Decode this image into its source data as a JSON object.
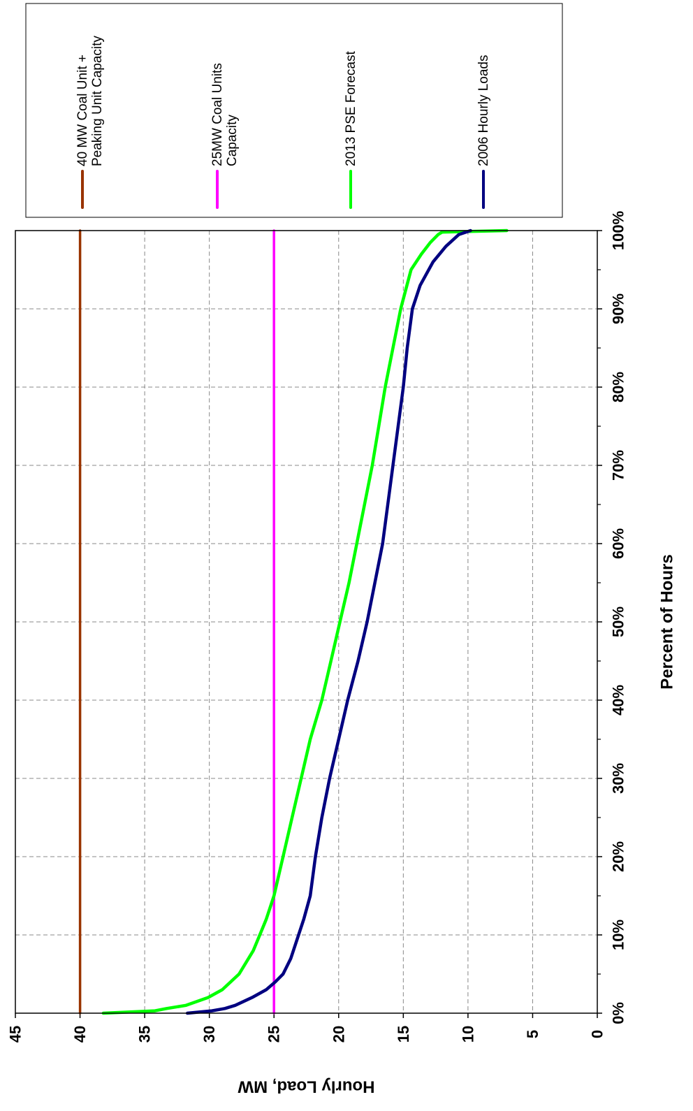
{
  "chart_data": {
    "type": "line",
    "xlabel": "Percent of Hours",
    "ylabel": "Hourly Load, MW",
    "xlim": [
      0,
      100
    ],
    "ylim": [
      0,
      45
    ],
    "x_ticks": [
      "0%",
      "10%",
      "20%",
      "30%",
      "40%",
      "50%",
      "60%",
      "70%",
      "80%",
      "90%",
      "100%"
    ],
    "y_ticks": [
      "0",
      "5",
      "10",
      "15",
      "20",
      "25",
      "30",
      "35",
      "40",
      "45"
    ],
    "grid": true,
    "orientation": "rotated 90 degrees clockwise",
    "legend_position": "right",
    "series": [
      {
        "name": "40 MW Coal Unit + Peaking Unit Capacity",
        "color": "#993300",
        "x": [
          0,
          100
        ],
        "y": [
          40,
          40
        ]
      },
      {
        "name": "25MW Coal Units Capacity",
        "color": "#ff00ff",
        "x": [
          0,
          100
        ],
        "y": [
          25,
          25
        ]
      },
      {
        "name": "2013 PSE Forecast",
        "color": "#00ff00",
        "x": [
          0,
          0.3,
          0.6,
          1,
          2,
          3,
          5,
          8,
          10,
          12,
          15,
          20,
          25,
          30,
          35,
          40,
          45,
          50,
          55,
          60,
          65,
          70,
          75,
          80,
          85,
          90,
          95,
          97,
          98.5,
          99.5,
          99.8,
          100
        ],
        "y": [
          38.2,
          34.2,
          33.3,
          31.8,
          30.1,
          29.0,
          27.7,
          26.6,
          26.1,
          25.6,
          25.0,
          24.3,
          23.6,
          22.9,
          22.2,
          21.3,
          20.6,
          19.9,
          19.2,
          18.6,
          18.0,
          17.4,
          16.9,
          16.4,
          15.8,
          15.2,
          14.4,
          13.6,
          12.9,
          12.3,
          12.0,
          7.0
        ]
      },
      {
        "name": "2006 Hourly Loads",
        "color": "#000080",
        "x": [
          0,
          0.3,
          0.6,
          1,
          2,
          3,
          4,
          5,
          7,
          10,
          12,
          15,
          20,
          25,
          30,
          35,
          40,
          45,
          50,
          55,
          60,
          65,
          70,
          75,
          80,
          85,
          90,
          93,
          96,
          98,
          99.5,
          100
        ],
        "y": [
          31.7,
          29.8,
          28.8,
          28.0,
          26.7,
          25.6,
          24.9,
          24.3,
          23.7,
          23.1,
          22.7,
          22.2,
          21.8,
          21.3,
          20.7,
          20.0,
          19.3,
          18.5,
          17.8,
          17.2,
          16.6,
          16.2,
          15.8,
          15.4,
          15.0,
          14.7,
          14.3,
          13.7,
          12.7,
          11.7,
          10.7,
          9.8
        ]
      }
    ]
  }
}
